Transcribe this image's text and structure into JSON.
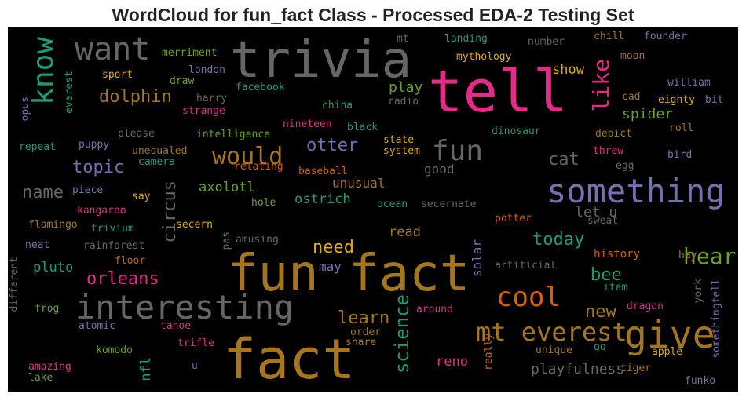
{
  "title": "WordCloud for fun_fact Class - Processed EDA-2 Testing Set",
  "colors": {
    "background": "#000000",
    "pink": "#e7298a",
    "orange": "#d95f02",
    "gold": "#a6761d",
    "yellow": "#e6ab02",
    "green": "#66a61e",
    "teal": "#1b9e77",
    "purple": "#7570b3",
    "gray": "#666666"
  },
  "words": {
    "trivia": "trivia",
    "tell": "tell",
    "want": "want",
    "know": "know",
    "dolphin": "dolphin",
    "like": "like",
    "fun": "fun",
    "would": "would",
    "otter": "otter",
    "topic": "topic",
    "cat": "cat",
    "something": "something",
    "name": "name",
    "circus": "circus",
    "axolotl": "axolotl",
    "unusual": "unusual",
    "ostrich": "ostrich",
    "let_u": "let u",
    "today": "today",
    "hear": "hear",
    "need": "need",
    "read": "read",
    "orleans": "orleans",
    "pluto": "pluto",
    "fun_fact": "fun fact",
    "cool": "cool",
    "interesting": "interesting",
    "bee": "bee",
    "new": "new",
    "learn": "learn",
    "science": "science",
    "mt_everest": "mt everest",
    "give": "give",
    "fact": "fact",
    "playfulness": "playfulness",
    "reno": "reno",
    "nfl": "nfl",
    "good": "good",
    "spider": "spider",
    "show": "show",
    "play": "play",
    "may": "may",
    "solar": "solar",
    "history": "history",
    "merriment": "merriment",
    "mt": "mt",
    "landing": "landing",
    "number": "number",
    "chill": "chill",
    "founder": "founder",
    "mythology": "mythology",
    "moon": "moon",
    "sport": "sport",
    "london": "london",
    "everest": "everest",
    "opus": "opus",
    "draw": "draw",
    "facebook": "facebook",
    "harry": "harry",
    "strange": "strange",
    "radio": "radio",
    "china": "china",
    "william": "william",
    "cad": "cad",
    "eighty": "eighty",
    "bit": "bit",
    "please": "please",
    "intelligence": "intelligence",
    "nineteen": "nineteen",
    "black": "black",
    "dinosaur": "dinosaur",
    "depict": "depict",
    "roll": "roll",
    "repeat": "repeat",
    "puppy": "puppy",
    "unequaled": "unequaled",
    "camera": "camera",
    "relating": "relating",
    "state": "state",
    "system": "system",
    "threw": "threw",
    "bird": "bird",
    "egg": "egg",
    "baseball": "baseball",
    "piece": "piece",
    "say": "say",
    "hole": "hole",
    "ocean": "ocean",
    "secernate": "secernate",
    "kangaroo": "kangaroo",
    "potter": "potter",
    "sweat": "sweat",
    "flamingo": "flamingo",
    "trivium": "trivium",
    "secern": "secern",
    "amusing": "amusing",
    "pas": "pas",
    "neat": "neat",
    "rainforest": "rainforest",
    "floor": "floor",
    "hay": "hay",
    "artificial": "artificial",
    "different": "different",
    "item": "item",
    "york": "york",
    "somethingtell": "somethingtell",
    "frog": "frog",
    "atomic": "atomic",
    "tahoe": "tahoe",
    "around": "around",
    "dragon": "dragon",
    "order": "order",
    "share": "share",
    "trifle": "trifle",
    "komodo": "komodo",
    "really": "really",
    "go": "go",
    "unique": "unique",
    "apple": "apple",
    "amazing": "amazing",
    "u": "u",
    "lake": "lake",
    "tiger": "tiger",
    "funko": "funko"
  }
}
